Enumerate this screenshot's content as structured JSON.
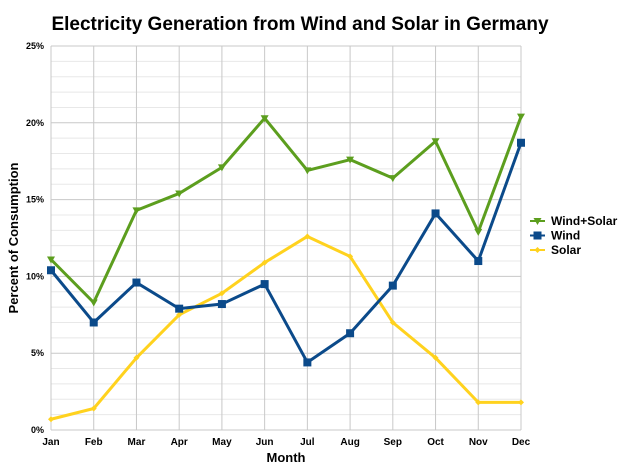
{
  "chart_data": {
    "type": "line",
    "title": "Electricity Generation from Wind and Solar in Germany",
    "xlabel": "Month",
    "ylabel": "Percent of Consumption",
    "categories": [
      "Jan",
      "Feb",
      "Mar",
      "Apr",
      "May",
      "Jun",
      "Jul",
      "Aug",
      "Sep",
      "Oct",
      "Nov",
      "Dec"
    ],
    "ylim": [
      0,
      25
    ],
    "yticks": [
      "0%",
      "5%",
      "10%",
      "15%",
      "20%",
      "25%"
    ],
    "grid": true,
    "legend_position": "right",
    "series": [
      {
        "name": "Wind+Solar",
        "color": "#5c9e1e",
        "marker": "triangle-down",
        "values": [
          11.1,
          8.3,
          14.3,
          15.4,
          17.1,
          20.3,
          16.9,
          17.6,
          16.4,
          18.8,
          12.9,
          20.4
        ]
      },
      {
        "name": "Wind",
        "color": "#0b4a8a",
        "marker": "square",
        "values": [
          10.4,
          7.0,
          9.6,
          7.9,
          8.2,
          9.5,
          4.4,
          6.3,
          9.4,
          14.1,
          11.0,
          18.7
        ]
      },
      {
        "name": "Solar",
        "color": "#ffd21e",
        "marker": "diamond",
        "values": [
          0.7,
          1.4,
          4.7,
          7.5,
          8.9,
          10.9,
          12.6,
          11.3,
          7.0,
          4.7,
          1.8,
          1.8
        ]
      }
    ]
  }
}
